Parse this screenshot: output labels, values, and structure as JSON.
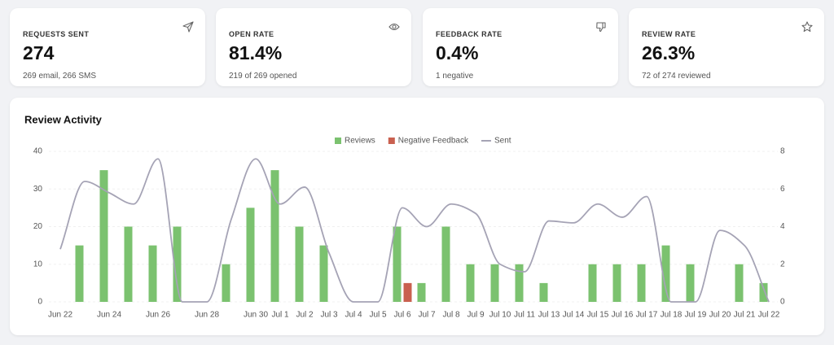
{
  "cards": [
    {
      "label": "REQUESTS SENT",
      "value": "274",
      "sub": "269 email, 266 SMS"
    },
    {
      "label": "OPEN RATE",
      "value": "81.4%",
      "sub": "219 of 269 opened"
    },
    {
      "label": "FEEDBACK RATE",
      "value": "0.4%",
      "sub": "1 negative"
    },
    {
      "label": "REVIEW RATE",
      "value": "26.3%",
      "sub": "72 of 274 reviewed"
    }
  ],
  "chart_data": {
    "type": "combo",
    "title": "Review Activity",
    "categories": [
      "Jun 22",
      null,
      "Jun 24",
      null,
      "Jun 26",
      null,
      "Jun 28",
      null,
      "Jun 30",
      "Jul 1",
      "Jul 2",
      "Jul 3",
      "Jul 4",
      "Jul 5",
      "Jul 6",
      "Jul 7",
      "Jul 8",
      "Jul 9",
      "Jul 10",
      "Jul 11",
      "Jul 13",
      "Jul 14",
      "Jul 15",
      "Jul 16",
      "Jul 17",
      "Jul 18",
      "Jul 19",
      "Jul 20",
      "Jul 21",
      "Jul 22"
    ],
    "series": [
      {
        "name": "Reviews",
        "type": "bar",
        "color": "#7bc26f",
        "values": [
          0,
          15,
          35,
          20,
          15,
          20,
          0,
          10,
          25,
          35,
          20,
          15,
          0,
          0,
          20,
          5,
          20,
          10,
          10,
          10,
          5,
          0,
          10,
          10,
          10,
          15,
          10,
          0,
          10,
          5
        ]
      },
      {
        "name": "Negative Feedback",
        "type": "bar",
        "color": "#c9604f",
        "values": [
          0,
          0,
          0,
          0,
          0,
          0,
          0,
          0,
          0,
          0,
          0,
          0,
          0,
          0,
          5,
          0,
          0,
          0,
          0,
          0,
          0,
          0,
          0,
          0,
          0,
          0,
          0,
          0,
          0,
          0
        ]
      },
      {
        "name": "Sent",
        "type": "line",
        "axis": "y2",
        "color": "#a5a3b5",
        "values": [
          2.8,
          6.4,
          5.8,
          5.2,
          7.6,
          0,
          0,
          4.4,
          7.6,
          5.2,
          6.1,
          2.6,
          0,
          0,
          5,
          4,
          5.2,
          4.7,
          2,
          1.6,
          4.3,
          4.2,
          5.2,
          4.5,
          5.6,
          0,
          0,
          3.8,
          3,
          0
        ]
      }
    ],
    "ylim": [
      0,
      40
    ],
    "yticks": [
      0,
      10,
      20,
      30,
      40
    ],
    "y2lim": [
      0,
      8
    ],
    "y2ticks": [
      0,
      2,
      4,
      6,
      8
    ],
    "grid": true,
    "legend": "top"
  }
}
